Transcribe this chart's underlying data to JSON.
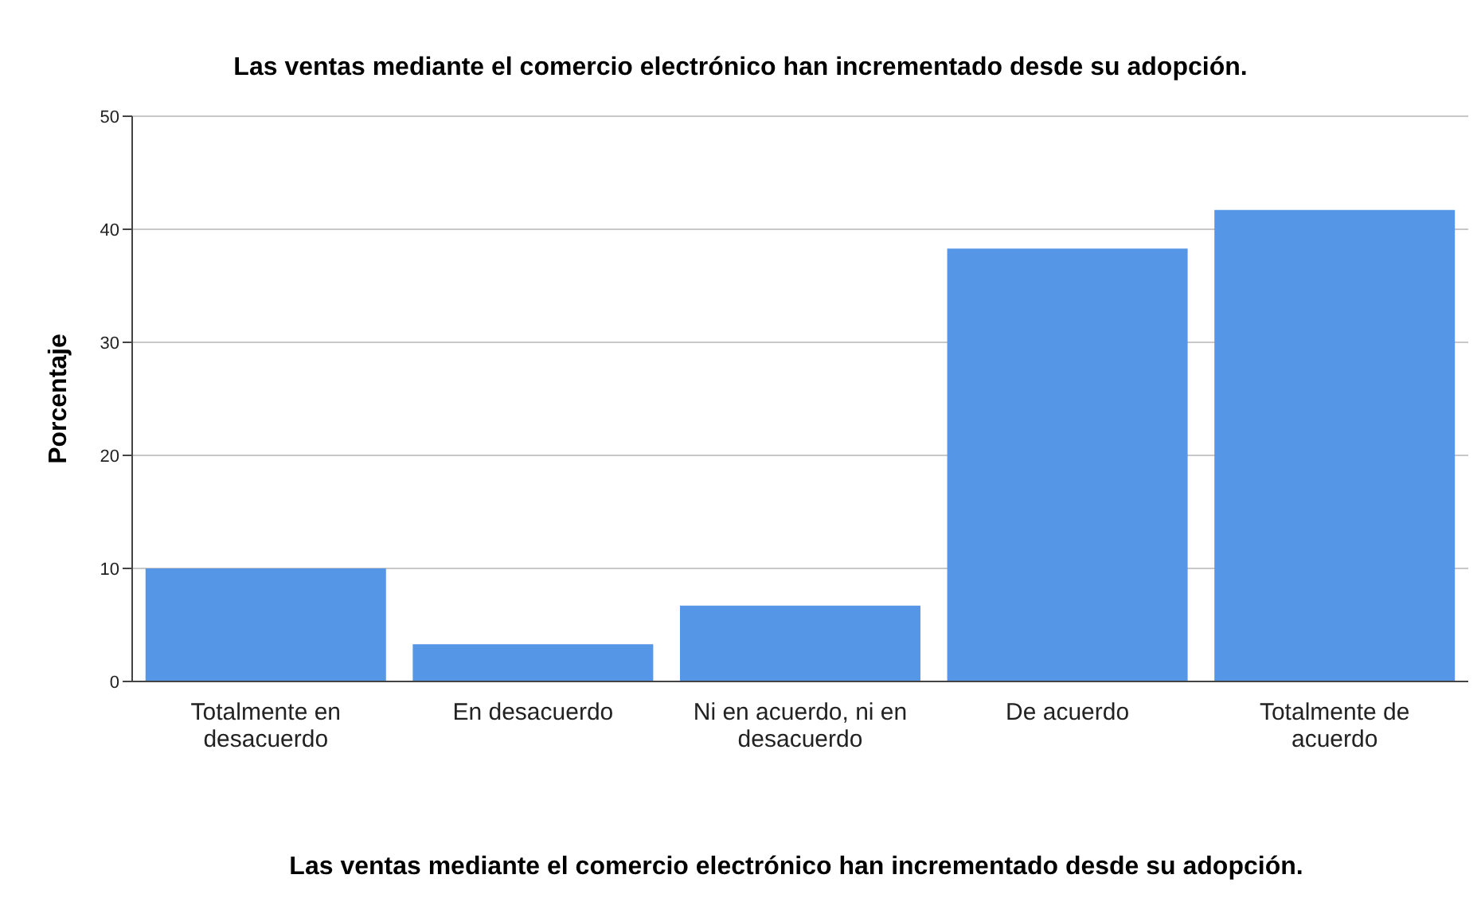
{
  "chart_data": {
    "type": "bar",
    "title": "Las ventas mediante el comercio electrónico han incrementado desde su adopción.",
    "xlabel": "Las ventas mediante el comercio electrónico han incrementado desde su adopción.",
    "ylabel": "Porcentaje",
    "categories": [
      "Totalmente en desacuerdo",
      "En desacuerdo",
      "Ni en acuerdo, ni en desacuerdo",
      "De acuerdo",
      "Totalmente de acuerdo"
    ],
    "values": [
      10,
      3.3,
      6.7,
      38.3,
      41.7
    ],
    "color": "#5596e6",
    "ylim": [
      0,
      50
    ],
    "yticks": [
      0,
      10,
      20,
      30,
      40,
      50
    ],
    "grid": "y"
  }
}
